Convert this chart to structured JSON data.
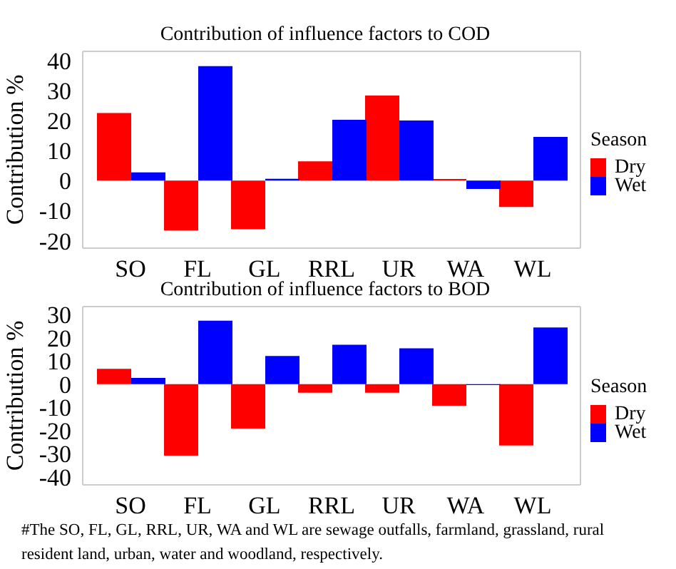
{
  "chart_data": [
    {
      "type": "bar",
      "title": "Contribution of influence factors to COD",
      "ylabel": "Contribution %",
      "legend_title": "Season",
      "legend": "right",
      "categories": [
        "SO",
        "FL",
        "GL",
        "RRL",
        "UR",
        "WA",
        "WL"
      ],
      "series": [
        {
          "name": "Dry",
          "color": "#ff0000",
          "values": [
            22.5,
            -16.6,
            -16.2,
            6.4,
            28.3,
            0.5,
            -8.8
          ]
        },
        {
          "name": "Wet",
          "color": "#0000ff",
          "values": [
            2.7,
            38.1,
            0.6,
            20.2,
            20.0,
            -2.8,
            14.5
          ]
        }
      ],
      "ylim": [
        -22.5,
        43
      ],
      "yticks": [
        -20,
        -10,
        0,
        10,
        20,
        30,
        40
      ]
    },
    {
      "type": "bar",
      "title": "Contribution of influence factors to BOD",
      "ylabel": "Contribution %",
      "legend_title": "Season",
      "legend": "right",
      "categories": [
        "SO",
        "FL",
        "GL",
        "RRL",
        "UR",
        "WA",
        "WL"
      ],
      "series": [
        {
          "name": "Dry",
          "color": "#ff0000",
          "values": [
            6.6,
            -30.9,
            -19.2,
            -3.7,
            -3.7,
            -9.3,
            -26.5
          ]
        },
        {
          "name": "Wet",
          "color": "#0000ff",
          "values": [
            2.7,
            27.4,
            12.2,
            17.0,
            15.5,
            -0.4,
            24.5
          ]
        }
      ],
      "ylim": [
        -43.5,
        33.5
      ],
      "yticks": [
        -40,
        -30,
        -20,
        -10,
        0,
        10,
        20,
        30
      ],
      "annotations": [
        "#The SO, FL, GL, RRL, UR, WA and WL are sewage outfalls, farmland, grassland, rural resident land, urban, water and woodland, respectively."
      ]
    }
  ]
}
